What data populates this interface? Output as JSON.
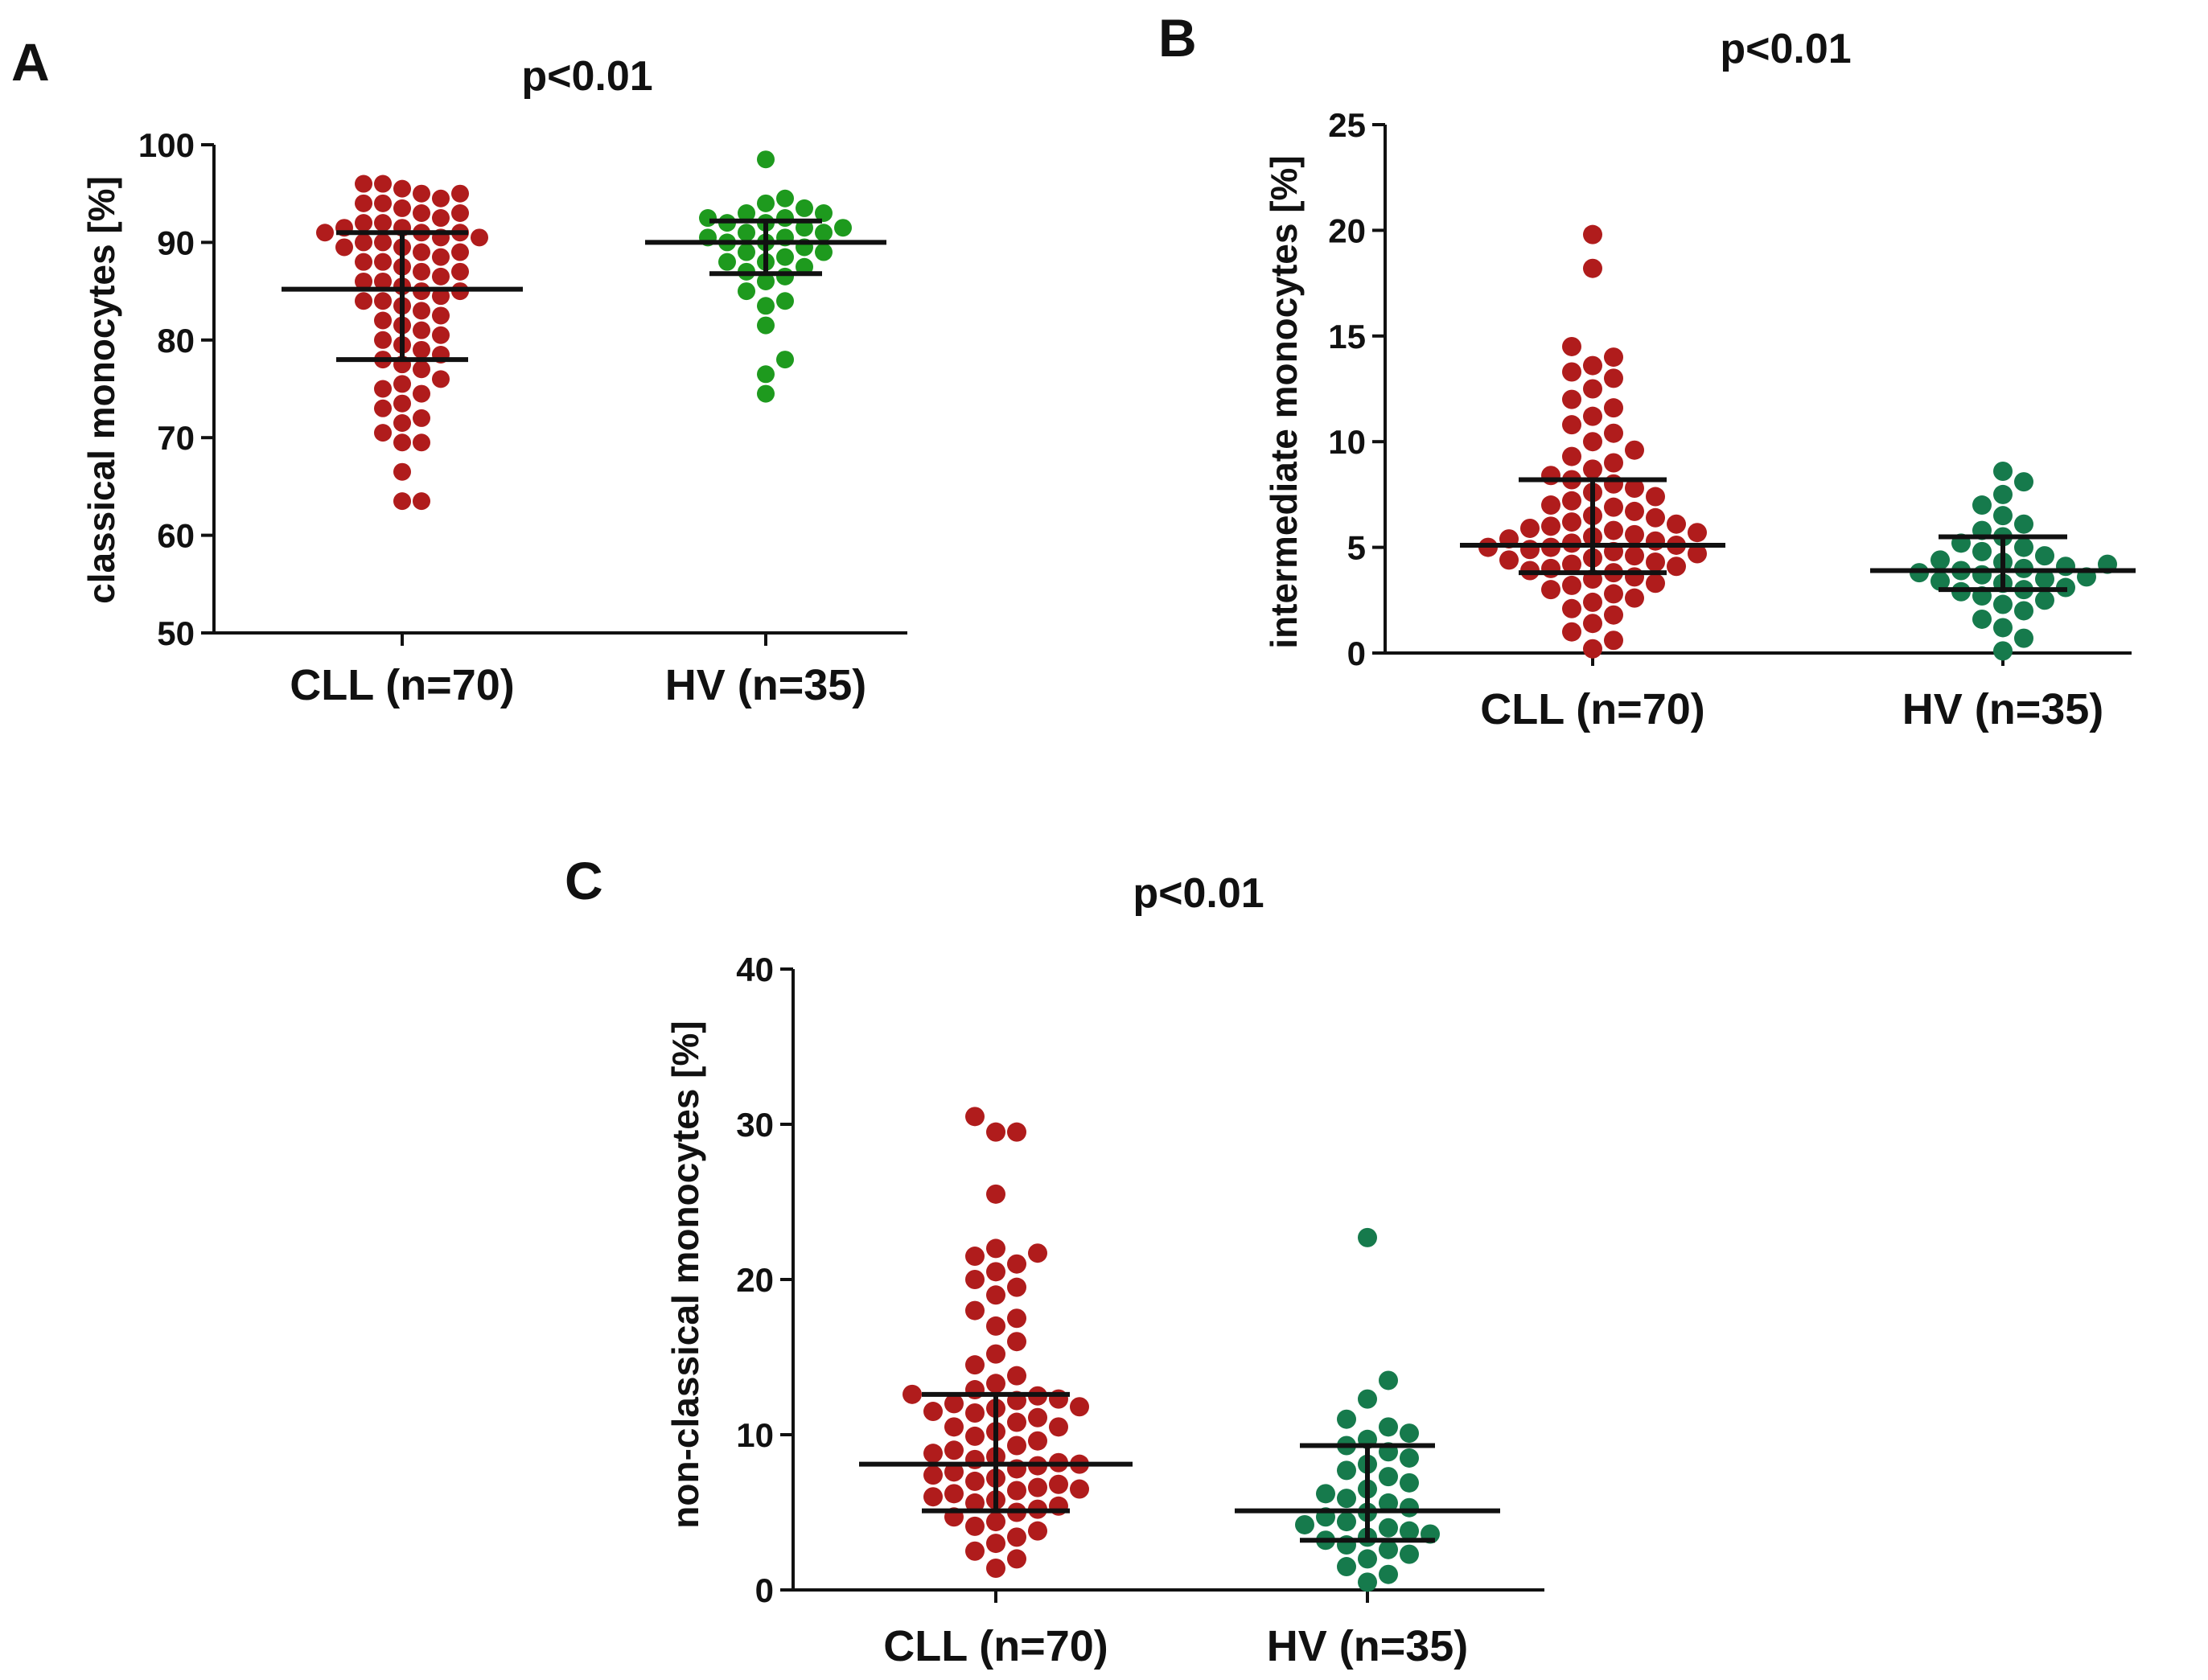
{
  "figure": {
    "panels": [
      "A",
      "B",
      "C"
    ]
  },
  "chart_data": [
    {
      "panel": "A",
      "type": "scatter",
      "subtype": "dot-plot-with-median-and-iqr",
      "title": "p<0.01",
      "xlabel": "",
      "ylabel": "classical monocytes [%]",
      "ylim": [
        50,
        100
      ],
      "yticks": [
        50,
        60,
        70,
        80,
        90,
        100
      ],
      "categories": [
        "CLL (n=70)",
        "HV (n=35)"
      ],
      "series": [
        {
          "name": "CLL (n=70)",
          "color": "#b01c1c",
          "median": 85.2,
          "q1": 78.0,
          "q3": 91.0,
          "values": [
            63.5,
            63.5,
            66.5,
            69.5,
            69.5,
            70.5,
            71.5,
            72.0,
            73.0,
            73.5,
            74.5,
            75.0,
            75.5,
            76.0,
            77.0,
            77.5,
            78.0,
            78.5,
            79.0,
            79.5,
            80.0,
            80.5,
            81.0,
            81.5,
            82.0,
            82.5,
            83.0,
            83.5,
            84.0,
            84.0,
            84.5,
            85.0,
            85.0,
            85.5,
            86.0,
            86.0,
            86.5,
            87.0,
            87.0,
            87.5,
            88.0,
            88.0,
            88.5,
            89.0,
            89.0,
            89.5,
            89.5,
            90.0,
            90.0,
            90.5,
            90.5,
            91.0,
            91.0,
            91.0,
            91.5,
            91.5,
            92.0,
            92.0,
            92.5,
            93.0,
            93.0,
            93.5,
            94.0,
            94.0,
            94.5,
            95.0,
            95.0,
            95.5,
            96.0,
            96.0
          ]
        },
        {
          "name": "HV (n=35)",
          "color": "#1e9a1e",
          "median": 90.0,
          "q1": 86.8,
          "q3": 92.2,
          "values": [
            74.5,
            76.5,
            78.0,
            81.5,
            83.5,
            84.0,
            85.0,
            86.0,
            86.5,
            87.0,
            87.5,
            88.0,
            88.0,
            88.5,
            89.0,
            89.0,
            89.5,
            90.0,
            90.0,
            90.5,
            90.5,
            91.0,
            91.0,
            91.5,
            91.5,
            92.0,
            92.0,
            92.5,
            92.5,
            93.0,
            93.0,
            93.5,
            94.0,
            94.5,
            98.5
          ]
        }
      ]
    },
    {
      "panel": "B",
      "type": "scatter",
      "subtype": "dot-plot-with-median-and-iqr",
      "title": "p<0.01",
      "xlabel": "",
      "ylabel": "intermediate monocytes [%]",
      "ylim": [
        0,
        25
      ],
      "yticks": [
        0,
        5,
        10,
        15,
        20,
        25
      ],
      "categories": [
        "CLL (n=70)",
        "HV (n=35)"
      ],
      "series": [
        {
          "name": "CLL (n=70)",
          "color": "#b01c1c",
          "median": 5.1,
          "q1": 3.8,
          "q3": 8.2,
          "values": [
            0.2,
            0.6,
            1.0,
            1.4,
            1.8,
            2.1,
            2.4,
            2.6,
            2.8,
            3.0,
            3.2,
            3.3,
            3.5,
            3.6,
            3.8,
            3.9,
            4.0,
            4.1,
            4.2,
            4.3,
            4.4,
            4.5,
            4.6,
            4.7,
            4.8,
            4.9,
            5.0,
            5.0,
            5.1,
            5.2,
            5.3,
            5.4,
            5.5,
            5.6,
            5.7,
            5.8,
            5.9,
            6.0,
            6.1,
            6.2,
            6.4,
            6.5,
            6.7,
            6.9,
            7.0,
            7.2,
            7.4,
            7.6,
            7.8,
            8.0,
            8.2,
            8.4,
            8.7,
            9.0,
            9.3,
            9.6,
            10.0,
            10.4,
            10.8,
            11.2,
            11.6,
            12.0,
            12.5,
            13.0,
            13.3,
            13.6,
            14.0,
            14.5,
            18.2,
            19.8
          ]
        },
        {
          "name": "HV (n=35)",
          "color": "#167a4c",
          "median": 3.9,
          "q1": 3.0,
          "q3": 5.5,
          "values": [
            0.1,
            0.7,
            1.2,
            1.6,
            2.0,
            2.3,
            2.5,
            2.7,
            2.9,
            3.0,
            3.1,
            3.3,
            3.4,
            3.5,
            3.6,
            3.7,
            3.8,
            3.9,
            4.0,
            4.1,
            4.2,
            4.3,
            4.4,
            4.6,
            4.8,
            5.0,
            5.2,
            5.5,
            5.8,
            6.1,
            6.5,
            7.0,
            7.5,
            8.1,
            8.6
          ]
        }
      ]
    },
    {
      "panel": "C",
      "type": "scatter",
      "subtype": "dot-plot-with-median-and-iqr",
      "title": "p<0.01",
      "xlabel": "",
      "ylabel": "non-classical monocytes [%]",
      "ylim": [
        0,
        40
      ],
      "yticks": [
        0,
        10,
        20,
        30,
        40
      ],
      "categories": [
        "CLL (n=70)",
        "HV (n=35)"
      ],
      "series": [
        {
          "name": "CLL (n=70)",
          "color": "#b01c1c",
          "median": 8.1,
          "q1": 5.1,
          "q3": 12.6,
          "values": [
            1.4,
            2.0,
            2.5,
            3.0,
            3.4,
            3.8,
            4.1,
            4.4,
            4.7,
            5.0,
            5.2,
            5.4,
            5.6,
            5.8,
            6.0,
            6.2,
            6.4,
            6.6,
            6.8,
            7.0,
            7.2,
            7.4,
            7.6,
            7.8,
            8.0,
            8.1,
            8.2,
            8.4,
            8.6,
            8.8,
            9.0,
            9.3,
            9.6,
            9.9,
            10.2,
            10.5,
            10.8,
            11.1,
            11.4,
            11.7,
            12.0,
            12.3,
            12.6,
            12.9,
            13.3,
            13.8,
            14.5,
            15.2,
            16.0,
            17.0,
            17.5,
            18.0,
            19.0,
            19.5,
            20.0,
            20.5,
            21.0,
            21.5,
            21.7,
            22.0,
            12.5,
            12.2,
            11.8,
            11.5,
            25.5,
            29.5,
            29.5,
            30.5,
            10.5,
            6.5
          ]
        },
        {
          "name": "HV (n=35)",
          "color": "#167a4c",
          "median": 5.1,
          "q1": 3.2,
          "q3": 9.3,
          "values": [
            0.5,
            1.0,
            1.5,
            2.0,
            2.3,
            2.6,
            2.9,
            3.2,
            3.4,
            3.6,
            3.8,
            4.0,
            4.2,
            4.4,
            4.7,
            5.0,
            5.3,
            5.6,
            5.9,
            6.2,
            6.5,
            6.9,
            7.3,
            7.7,
            8.1,
            8.5,
            8.9,
            9.3,
            9.7,
            10.1,
            10.5,
            11.0,
            12.3,
            13.5,
            22.7
          ]
        }
      ]
    }
  ]
}
